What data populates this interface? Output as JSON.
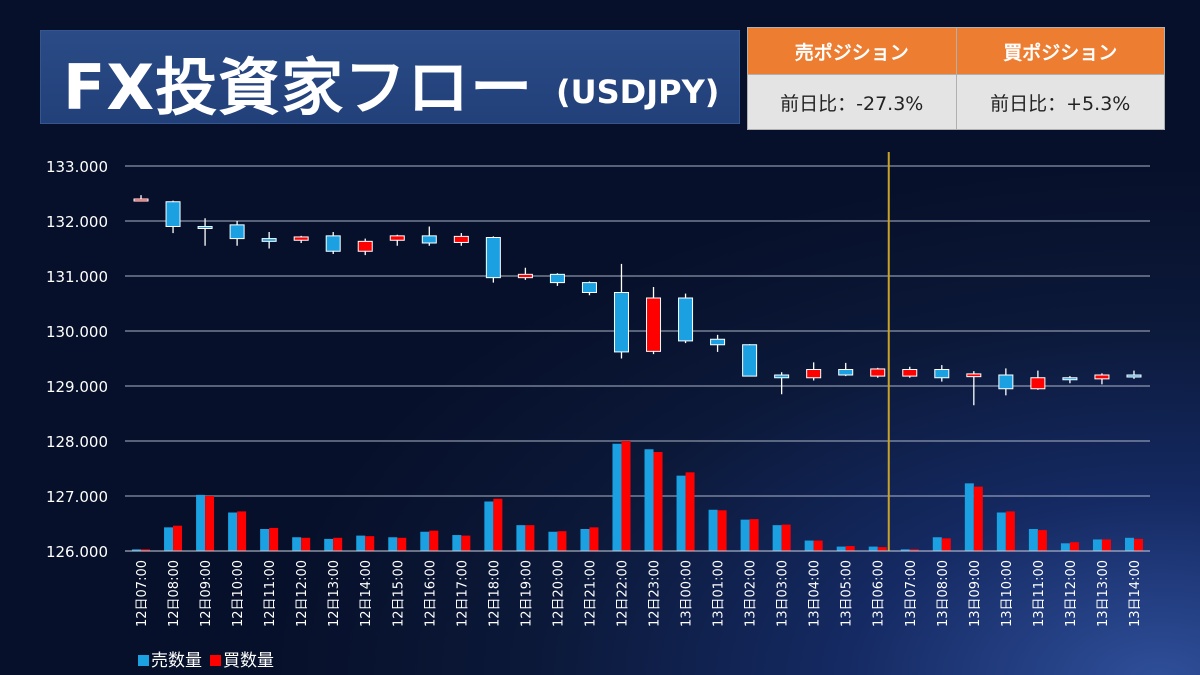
{
  "title": {
    "main": "FX投資家フロー",
    "sub": "(USDJPY)"
  },
  "positions": {
    "sell_header": "売ポジション",
    "buy_header": "買ポジション",
    "sell_value": "前日比：-27.3%",
    "buy_value": "前日比：+5.3%"
  },
  "legend": {
    "sell": "売数量",
    "buy": "買数量"
  },
  "colors": {
    "sell": "#1ba1e2",
    "buy": "#ff0000",
    "marker": "#c9a227",
    "header": "#ed7d31"
  },
  "chart_data": {
    "type": "candlestick+bar",
    "ylim": [
      126000,
      133000
    ],
    "y_ticks": [
      "126.000",
      "127.000",
      "128.000",
      "129.000",
      "130.000",
      "131.000",
      "132.000",
      "133.000"
    ],
    "marker_after_index": 23,
    "categories": [
      "12日07:00",
      "12日08:00",
      "12日09:00",
      "12日10:00",
      "12日11:00",
      "12日12:00",
      "12日13:00",
      "12日14:00",
      "12日15:00",
      "12日16:00",
      "12日17:00",
      "12日18:00",
      "12日19:00",
      "12日20:00",
      "12日21:00",
      "12日22:00",
      "12日23:00",
      "13日00:00",
      "13日01:00",
      "13日02:00",
      "13日03:00",
      "13日04:00",
      "13日05:00",
      "13日06:00",
      "13日07:00",
      "13日08:00",
      "13日09:00",
      "13日10:00",
      "13日11:00",
      "13日12:00",
      "13日13:00",
      "13日14:00"
    ],
    "candles": [
      {
        "o": 132.4,
        "h": 132.47,
        "l": 132.38,
        "c": 132.4
      },
      {
        "o": 132.35,
        "h": 132.37,
        "l": 131.78,
        "c": 131.9
      },
      {
        "o": 131.9,
        "h": 132.05,
        "l": 131.55,
        "c": 131.88
      },
      {
        "o": 131.93,
        "h": 132.0,
        "l": 131.55,
        "c": 131.68
      },
      {
        "o": 131.68,
        "h": 131.8,
        "l": 131.5,
        "c": 131.63
      },
      {
        "o": 131.65,
        "h": 131.73,
        "l": 131.6,
        "c": 131.71
      },
      {
        "o": 131.73,
        "h": 131.8,
        "l": 131.4,
        "c": 131.45
      },
      {
        "o": 131.45,
        "h": 131.68,
        "l": 131.38,
        "c": 131.63
      },
      {
        "o": 131.65,
        "h": 131.75,
        "l": 131.55,
        "c": 131.73
      },
      {
        "o": 131.73,
        "h": 131.9,
        "l": 131.55,
        "c": 131.6
      },
      {
        "o": 131.61,
        "h": 131.78,
        "l": 131.55,
        "c": 131.72
      },
      {
        "o": 131.7,
        "h": 131.72,
        "l": 130.88,
        "c": 130.97
      },
      {
        "o": 130.97,
        "h": 131.15,
        "l": 130.93,
        "c": 131.03
      },
      {
        "o": 131.03,
        "h": 131.05,
        "l": 130.82,
        "c": 130.88
      },
      {
        "o": 130.88,
        "h": 130.9,
        "l": 130.65,
        "c": 130.7
      },
      {
        "o": 130.7,
        "h": 131.22,
        "l": 129.5,
        "c": 129.62
      },
      {
        "o": 129.63,
        "h": 130.8,
        "l": 129.58,
        "c": 130.6
      },
      {
        "o": 130.6,
        "h": 130.68,
        "l": 129.78,
        "c": 129.82
      },
      {
        "o": 129.85,
        "h": 129.93,
        "l": 129.62,
        "c": 129.75
      },
      {
        "o": 129.75,
        "h": 129.76,
        "l": 129.18,
        "c": 129.18
      },
      {
        "o": 129.2,
        "h": 129.25,
        "l": 128.85,
        "c": 129.15
      },
      {
        "o": 129.15,
        "h": 129.43,
        "l": 129.1,
        "c": 129.3
      },
      {
        "o": 129.3,
        "h": 129.42,
        "l": 129.18,
        "c": 129.2
      },
      {
        "o": 129.18,
        "h": 129.33,
        "l": 129.15,
        "c": 129.31
      },
      {
        "o": 129.18,
        "h": 129.35,
        "l": 129.15,
        "c": 129.3
      },
      {
        "o": 129.3,
        "h": 129.38,
        "l": 129.08,
        "c": 129.15
      },
      {
        "o": 129.17,
        "h": 129.27,
        "l": 128.65,
        "c": 129.22
      },
      {
        "o": 129.2,
        "h": 129.32,
        "l": 128.83,
        "c": 128.95
      },
      {
        "o": 128.95,
        "h": 129.28,
        "l": 128.93,
        "c": 129.15
      },
      {
        "o": 129.15,
        "h": 129.18,
        "l": 129.05,
        "c": 129.12
      },
      {
        "o": 129.13,
        "h": 129.23,
        "l": 129.03,
        "c": 129.2
      },
      {
        "o": 129.2,
        "h": 129.28,
        "l": 129.13,
        "c": 129.18
      }
    ],
    "series": [
      {
        "name": "売数量",
        "values": [
          126.03,
          126.43,
          127.02,
          126.7,
          126.4,
          126.25,
          126.22,
          126.28,
          126.25,
          126.35,
          126.29,
          126.9,
          126.47,
          126.35,
          126.4,
          127.95,
          127.85,
          127.37,
          126.75,
          126.57,
          126.47,
          126.19,
          126.08,
          126.08,
          126.03,
          126.25,
          127.23,
          126.7,
          126.4,
          126.14,
          126.21,
          126.24
        ]
      },
      {
        "name": "買数量",
        "values": [
          126.03,
          126.46,
          127.0,
          126.72,
          126.42,
          126.24,
          126.24,
          126.27,
          126.24,
          126.37,
          126.28,
          126.95,
          126.47,
          126.36,
          126.43,
          128.0,
          127.8,
          127.43,
          126.74,
          126.58,
          126.48,
          126.19,
          126.09,
          126.07,
          126.03,
          126.23,
          127.17,
          126.72,
          126.38,
          126.16,
          126.21,
          126.22
        ]
      }
    ]
  }
}
